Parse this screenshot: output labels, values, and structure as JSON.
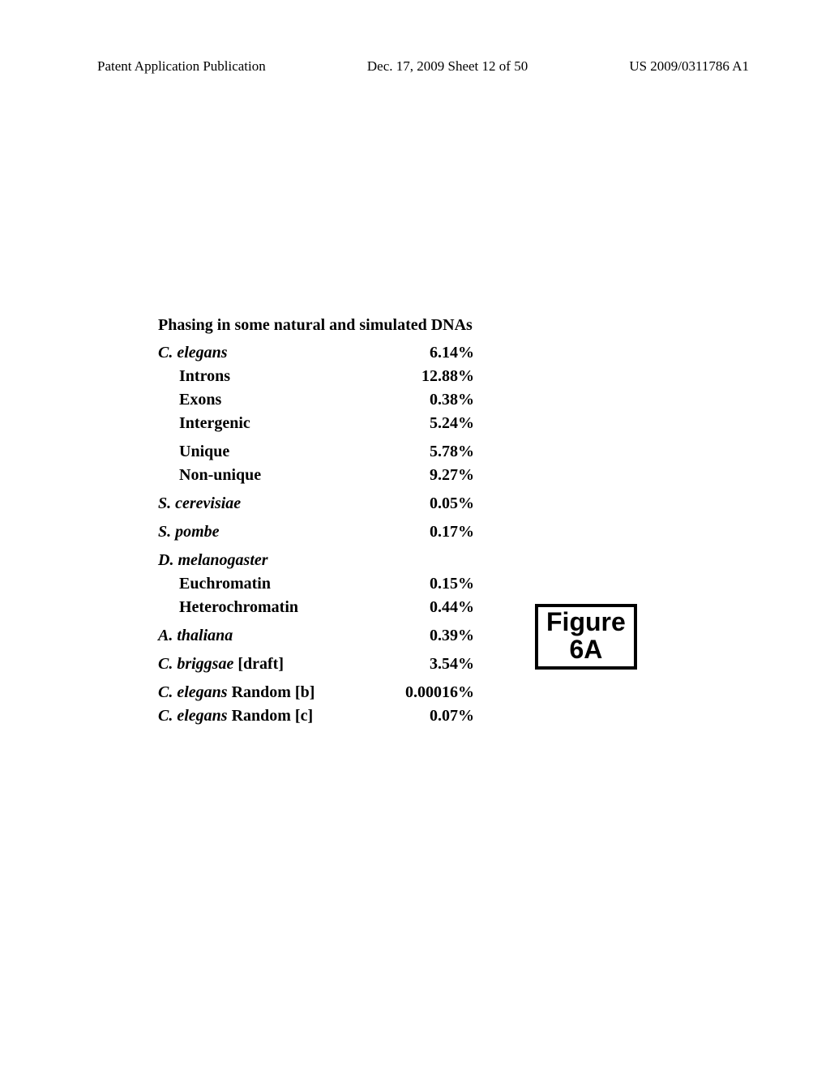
{
  "header": {
    "left": "Patent Application Publication",
    "center": "Dec. 17, 2009  Sheet 12 of 50",
    "right": "US 2009/0311786 A1"
  },
  "table": {
    "title": "Phasing in some natural and simulated DNAs",
    "rows": [
      {
        "label_italic": "C. elegans",
        "label_plain": "",
        "value": "6.14%",
        "indent": false,
        "top": true
      },
      {
        "label_italic": "",
        "label_plain": "Introns",
        "value": "12.88%",
        "indent": true,
        "top": false
      },
      {
        "label_italic": "",
        "label_plain": "Exons",
        "value": "0.38%",
        "indent": true,
        "top": false
      },
      {
        "label_italic": "",
        "label_plain": "Intergenic",
        "value": "5.24%",
        "indent": true,
        "top": false
      },
      {
        "label_italic": "",
        "label_plain": "Unique",
        "value": "5.78%",
        "indent": true,
        "top": true
      },
      {
        "label_italic": "",
        "label_plain": "Non-unique",
        "value": "9.27%",
        "indent": true,
        "top": false
      },
      {
        "label_italic": "S. cerevisiae",
        "label_plain": "",
        "value": "0.05%",
        "indent": false,
        "top": true
      },
      {
        "label_italic": "S. pombe",
        "label_plain": "",
        "value": "0.17%",
        "indent": false,
        "top": true
      },
      {
        "label_italic": "D. melanogaster",
        "label_plain": "",
        "value": "",
        "indent": false,
        "top": true
      },
      {
        "label_italic": "",
        "label_plain": "Euchromatin",
        "value": "0.15%",
        "indent": true,
        "top": false
      },
      {
        "label_italic": "",
        "label_plain": "Heterochromatin",
        "value": "0.44%",
        "indent": true,
        "top": false
      },
      {
        "label_italic": "A. thaliana",
        "label_plain": "",
        "value": "0.39%",
        "indent": false,
        "top": true
      },
      {
        "label_italic": "C. briggsae",
        "label_plain": " [draft]",
        "value": "3.54%",
        "indent": false,
        "top": true
      },
      {
        "label_italic": "C. elegans",
        "label_plain": " Random [b]",
        "value": "0.00016%",
        "indent": false,
        "top": true
      },
      {
        "label_italic": "C. elegans",
        "label_plain": " Random [c]",
        "value": "0.07%",
        "indent": false,
        "top": false
      }
    ]
  },
  "figure": {
    "line1": "Figure",
    "line2": "6A"
  }
}
